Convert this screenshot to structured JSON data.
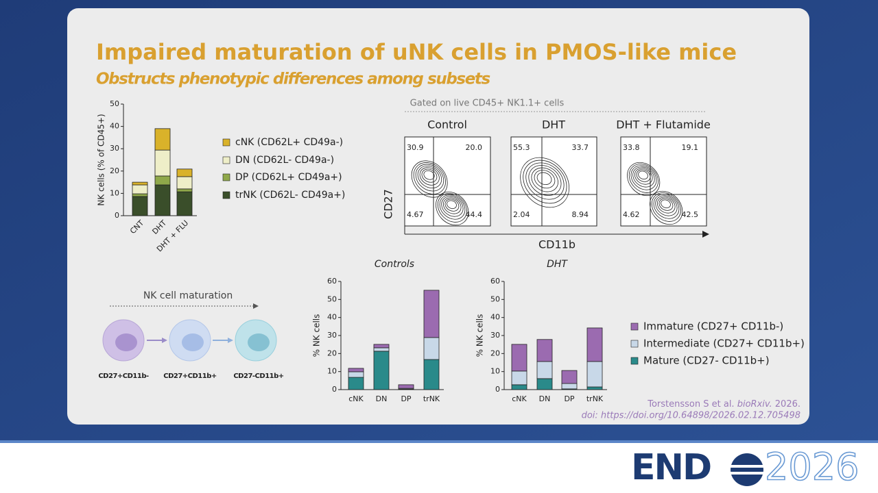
{
  "title": "Impaired maturation of uNK cells in PMOS-like mice",
  "subtitle": "Obstructs phenotypic differences among subsets",
  "chart_data": [
    {
      "type": "bar",
      "stacked": true,
      "y_label": "NK cells (% of CD45+)",
      "categories": [
        "CNT",
        "DHT",
        "DHT + FLU"
      ],
      "series": [
        {
          "name": "cNK (CD62L+ CD49a-)",
          "color": "#d9b22a",
          "values": [
            1.2,
            9.6,
            3.4
          ]
        },
        {
          "name": "DN (CD62L- CD49a-)",
          "color": "#eeeec8",
          "values": [
            4.0,
            11.6,
            5.5
          ]
        },
        {
          "name": "DP (CD62L+ CD49a+)",
          "color": "#8fa84a",
          "values": [
            1.2,
            4.0,
            1.3
          ]
        },
        {
          "name": "trNK (CD62L- CD49a+)",
          "color": "#3a4e2a",
          "values": [
            8.6,
            13.8,
            10.7
          ]
        }
      ],
      "ylim": [
        0,
        50
      ],
      "yticks": [
        0,
        10,
        20,
        30,
        40,
        50
      ]
    },
    {
      "type": "bar",
      "stacked": true,
      "title": "Controls",
      "y_label": "% NK cells",
      "categories": [
        "cNK",
        "DN",
        "DP",
        "trNK"
      ],
      "series": [
        {
          "color": "#9b6bb0",
          "values": [
            1.9,
            1.9,
            2.0,
            26.2
          ]
        },
        {
          "color": "#c8d8e8",
          "values": [
            3.1,
            1.9,
            0.4,
            12.2
          ]
        },
        {
          "color": "#2a8a8a",
          "values": [
            6.8,
            21.3,
            0.3,
            16.7
          ]
        }
      ],
      "ylim": [
        0,
        60
      ],
      "yticks": [
        0,
        10,
        20,
        30,
        40,
        50,
        60
      ]
    },
    {
      "type": "bar",
      "stacked": true,
      "title": "DHT",
      "y_label": "% NK cells",
      "categories": [
        "cNK",
        "DN",
        "DP",
        "trNK"
      ],
      "series": [
        {
          "name": "Immature (CD27+ CD11b-)",
          "color": "#9b6bb0",
          "values": [
            14.8,
            12.2,
            7.2,
            18.6
          ]
        },
        {
          "name": "Intermediate (CD27+ CD11b+)",
          "color": "#c8d8e8",
          "values": [
            7.6,
            9.5,
            3.0,
            14.1
          ]
        },
        {
          "name": "Mature (CD27- CD11b+)",
          "color": "#2a8a8a",
          "values": [
            2.7,
            6.1,
            0.4,
            1.5
          ]
        }
      ],
      "ylim": [
        0,
        60
      ],
      "yticks": [
        0,
        10,
        20,
        30,
        40,
        50,
        60
      ]
    }
  ],
  "flow": {
    "gate_label": "Gated on live CD45+ NK1.1+ cells",
    "x_label": "CD11b",
    "y_label": "CD27",
    "panels": [
      {
        "title": "Control",
        "quadrants": [
          "30.9",
          "20.0",
          "4.67",
          "44.4"
        ]
      },
      {
        "title": "DHT",
        "quadrants": [
          "55.3",
          "33.7",
          "2.04",
          "8.94"
        ]
      },
      {
        "title": "DHT + Flutamide",
        "quadrants": [
          "33.8",
          "19.1",
          "4.62",
          "42.5"
        ]
      }
    ]
  },
  "maturation": {
    "title": "NK cell maturation",
    "stages": [
      "CD27+CD11b-",
      "CD27+CD11b+",
      "CD27-CD11b+"
    ]
  },
  "citation": {
    "authors": "Torstensson S et al.",
    "journal": "bioRxiv.",
    "year": "2026.",
    "doi": "doi: https://doi.org/10.64898/2026.02.12.705498"
  },
  "logo": {
    "left": "END",
    "right": "2026"
  }
}
